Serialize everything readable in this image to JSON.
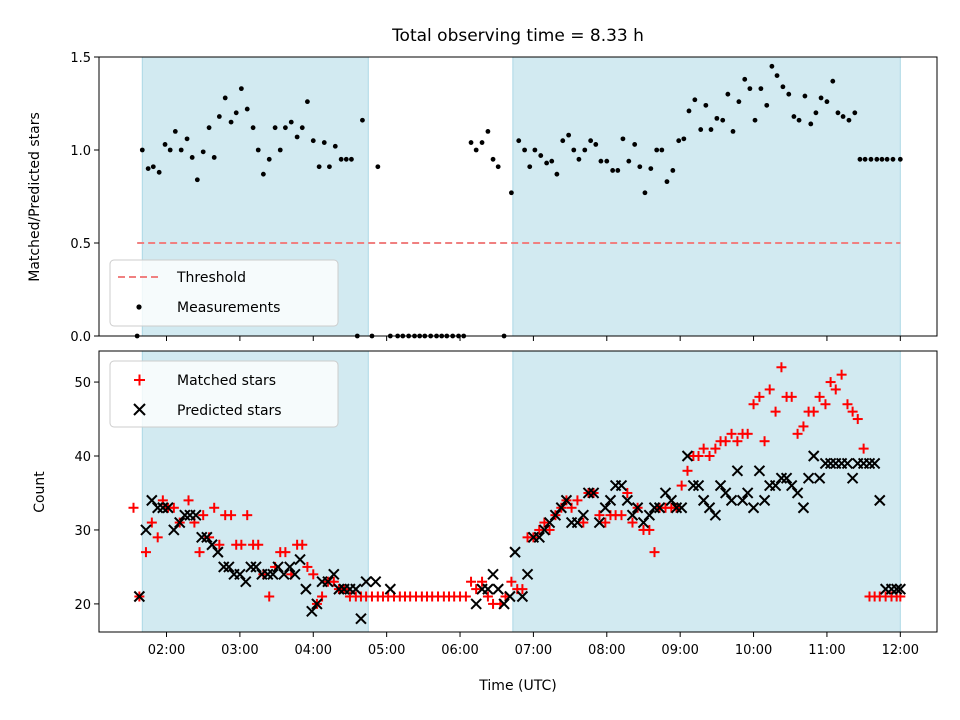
{
  "chart_data": [
    {
      "type": "scatter",
      "title": "Total observing time = 8.33 h",
      "ylabel": "Matched/Predicted stars",
      "xlabel": "",
      "ylim": [
        0,
        1.5
      ],
      "yticks": [
        0.0,
        0.5,
        1.0,
        1.5
      ],
      "ytick_labels": [
        "0.0",
        "0.5",
        "1.0",
        "1.5"
      ],
      "xlim": [
        1.08,
        12.5
      ],
      "grid": false,
      "legend": "lower-left",
      "shaded_intervals": [
        [
          1.67,
          4.75
        ],
        [
          6.72,
          12.0
        ]
      ],
      "shade_color": "#add8e6",
      "series": [
        {
          "name": "Threshold",
          "style": "dashed-line",
          "color": "#f08080",
          "x": [
            1.6,
            12.0
          ],
          "y": [
            0.5,
            0.5
          ]
        },
        {
          "name": "Measurements",
          "style": "dot",
          "color": "#000000",
          "x": [
            1.6,
            1.67,
            1.75,
            1.82,
            1.9,
            1.98,
            2.05,
            2.12,
            2.2,
            2.28,
            2.35,
            2.42,
            2.5,
            2.58,
            2.65,
            2.72,
            2.8,
            2.88,
            2.95,
            3.02,
            3.1,
            3.18,
            3.25,
            3.32,
            3.4,
            3.48,
            3.55,
            3.62,
            3.7,
            3.78,
            3.85,
            3.92,
            4.0,
            4.08,
            4.15,
            4.22,
            4.3,
            4.38,
            4.45,
            4.52,
            4.6,
            4.67,
            4.8,
            4.88,
            5.05,
            5.15,
            5.22,
            5.3,
            5.38,
            5.45,
            5.52,
            5.6,
            5.68,
            5.75,
            5.82,
            5.9,
            5.98,
            6.05,
            6.15,
            6.22,
            6.3,
            6.38,
            6.45,
            6.52,
            6.6,
            6.7,
            6.8,
            6.88,
            6.95,
            7.02,
            7.1,
            7.18,
            7.25,
            7.32,
            7.4,
            7.48,
            7.55,
            7.62,
            7.7,
            7.78,
            7.85,
            7.92,
            8.0,
            8.08,
            8.15,
            8.22,
            8.3,
            8.38,
            8.45,
            8.52,
            8.6,
            8.68,
            8.75,
            8.82,
            8.9,
            8.98,
            9.05,
            9.12,
            9.2,
            9.28,
            9.35,
            9.42,
            9.5,
            9.58,
            9.65,
            9.72,
            9.8,
            9.88,
            9.95,
            10.02,
            10.1,
            10.18,
            10.25,
            10.32,
            10.4,
            10.48,
            10.55,
            10.62,
            10.7,
            10.78,
            10.85,
            10.92,
            11.0,
            11.08,
            11.15,
            11.22,
            11.3,
            11.38,
            11.45,
            11.52,
            11.6,
            11.68,
            11.75,
            11.82,
            11.9,
            12.0
          ],
          "y": [
            0.0,
            1.0,
            0.9,
            0.91,
            0.88,
            1.03,
            1.0,
            1.1,
            1.0,
            1.06,
            0.96,
            0.84,
            0.99,
            1.12,
            0.96,
            1.18,
            1.28,
            1.15,
            1.2,
            1.33,
            1.22,
            1.12,
            1.0,
            0.87,
            0.95,
            1.12,
            1.0,
            1.12,
            1.15,
            1.07,
            1.12,
            1.26,
            1.05,
            0.91,
            1.04,
            0.91,
            1.02,
            0.95,
            0.95,
            0.95,
            0.0,
            1.16,
            0.0,
            0.91,
            0.0,
            0.0,
            0.0,
            0.0,
            0.0,
            0.0,
            0.0,
            0.0,
            0.0,
            0.0,
            0.0,
            0.0,
            0.0,
            0.0,
            1.04,
            1.0,
            1.04,
            1.1,
            0.95,
            0.91,
            0.0,
            0.77,
            1.05,
            1.0,
            0.91,
            1.0,
            0.97,
            0.93,
            0.94,
            0.87,
            1.05,
            1.08,
            1.0,
            0.95,
            1.0,
            1.05,
            1.03,
            0.94,
            0.94,
            0.89,
            0.89,
            1.06,
            0.94,
            1.03,
            0.91,
            0.77,
            0.9,
            1.0,
            1.0,
            0.83,
            0.89,
            1.05,
            1.06,
            1.21,
            1.27,
            1.11,
            1.24,
            1.11,
            1.17,
            1.16,
            1.3,
            1.1,
            1.26,
            1.38,
            1.33,
            1.16,
            1.33,
            1.24,
            1.45,
            1.4,
            1.34,
            1.3,
            1.18,
            1.16,
            1.29,
            1.14,
            1.2,
            1.28,
            1.26,
            1.37,
            1.2,
            1.18,
            1.16,
            1.2,
            0.95,
            0.95,
            0.95,
            0.95,
            0.95,
            0.95,
            0.95,
            0.95
          ]
        }
      ],
      "xticks": [
        2,
        3,
        4,
        5,
        6,
        7,
        8,
        9,
        10,
        11,
        12
      ]
    },
    {
      "type": "scatter",
      "title": "",
      "ylabel": "Count",
      "xlabel": "Time (UTC)",
      "ylim": [
        16.2,
        54.2
      ],
      "yticks": [
        20,
        30,
        40,
        50
      ],
      "ytick_labels": [
        "20",
        "30",
        "40",
        "50"
      ],
      "xlim": [
        1.08,
        12.5
      ],
      "xticks": [
        2,
        3,
        4,
        5,
        6,
        7,
        8,
        9,
        10,
        11,
        12
      ],
      "xtick_labels": [
        "02:00",
        "03:00",
        "04:00",
        "05:00",
        "06:00",
        "07:00",
        "08:00",
        "09:00",
        "10:00",
        "11:00",
        "12:00"
      ],
      "grid": false,
      "legend": "top-left",
      "shaded_intervals": [
        [
          1.67,
          4.75
        ],
        [
          6.72,
          12.0
        ]
      ],
      "shade_color": "#add8e6",
      "series": [
        {
          "name": "Matched stars",
          "marker": "plus",
          "color": "#ff0000",
          "x": [
            1.55,
            1.63,
            1.72,
            1.8,
            1.88,
            1.95,
            2.02,
            2.1,
            2.18,
            2.3,
            2.38,
            2.45,
            2.5,
            2.58,
            2.65,
            2.72,
            2.8,
            2.88,
            2.95,
            3.02,
            3.1,
            3.18,
            3.25,
            3.32,
            3.4,
            3.48,
            3.55,
            3.62,
            3.7,
            3.78,
            3.85,
            3.92,
            4.0,
            4.05,
            4.12,
            4.2,
            4.28,
            4.35,
            4.42,
            4.5,
            4.58,
            4.65,
            4.72,
            4.8,
            4.88,
            4.95,
            5.02,
            5.1,
            5.18,
            5.25,
            5.32,
            5.4,
            5.48,
            5.55,
            5.62,
            5.7,
            5.78,
            5.85,
            5.92,
            6.0,
            6.08,
            6.15,
            6.22,
            6.3,
            6.38,
            6.45,
            6.55,
            6.62,
            6.7,
            6.78,
            6.85,
            6.92,
            7.0,
            7.08,
            7.15,
            7.22,
            7.3,
            7.38,
            7.45,
            7.52,
            7.6,
            7.68,
            7.75,
            7.82,
            7.9,
            7.98,
            8.05,
            8.12,
            8.2,
            8.28,
            8.35,
            8.42,
            8.5,
            8.58,
            8.65,
            8.72,
            8.8,
            8.88,
            8.95,
            9.02,
            9.1,
            9.18,
            9.25,
            9.32,
            9.4,
            9.48,
            9.55,
            9.62,
            9.7,
            9.78,
            9.85,
            9.92,
            10.0,
            10.08,
            10.15,
            10.22,
            10.3,
            10.38,
            10.45,
            10.52,
            10.6,
            10.68,
            10.75,
            10.82,
            10.9,
            10.98,
            11.05,
            11.12,
            11.2,
            11.28,
            11.35,
            11.42,
            11.5,
            11.58,
            11.65,
            11.72,
            11.8,
            11.88,
            11.95,
            12.0
          ],
          "y": [
            33,
            21,
            27,
            31,
            29,
            34,
            33,
            33,
            31,
            34,
            31,
            27,
            32,
            29,
            33,
            28,
            32,
            32,
            28,
            28,
            32,
            28,
            28,
            24,
            21,
            25,
            27,
            27,
            24,
            28,
            28,
            25,
            24,
            20,
            21,
            23,
            23,
            22,
            22,
            21,
            21,
            21,
            21,
            21,
            21,
            21,
            21,
            21,
            21,
            21,
            21,
            21,
            21,
            21,
            21,
            21,
            21,
            21,
            21,
            21,
            21,
            23,
            22,
            23,
            21,
            20,
            20,
            21,
            23,
            22,
            22,
            29,
            29,
            30,
            31,
            30,
            32,
            33,
            34,
            33,
            34,
            31,
            35,
            35,
            32,
            31,
            32,
            32,
            32,
            35,
            31,
            33,
            30,
            30,
            27,
            33,
            33,
            33,
            33,
            36,
            38,
            40,
            40,
            41,
            40,
            41,
            42,
            42,
            43,
            42,
            43,
            43,
            47,
            48,
            42,
            49,
            46,
            52,
            48,
            48,
            43,
            44,
            46,
            46,
            48,
            47,
            50,
            49,
            51,
            47,
            46,
            45,
            41,
            21,
            21,
            21,
            21,
            21,
            21,
            21
          ]
        },
        {
          "name": "Predicted stars",
          "marker": "x",
          "color": "#000000",
          "x": [
            1.63,
            1.72,
            1.8,
            1.88,
            1.95,
            2.02,
            2.1,
            2.18,
            2.25,
            2.32,
            2.4,
            2.48,
            2.55,
            2.62,
            2.7,
            2.78,
            2.85,
            2.92,
            3.0,
            3.08,
            3.15,
            3.22,
            3.3,
            3.38,
            3.45,
            3.52,
            3.6,
            3.68,
            3.75,
            3.82,
            3.9,
            3.98,
            4.05,
            4.12,
            4.2,
            4.28,
            4.35,
            4.42,
            4.5,
            4.58,
            4.65,
            4.72,
            4.85,
            5.05,
            6.22,
            6.3,
            6.38,
            6.45,
            6.52,
            6.6,
            6.68,
            6.75,
            6.85,
            6.92,
            7.0,
            7.08,
            7.15,
            7.22,
            7.3,
            7.38,
            7.45,
            7.52,
            7.6,
            7.68,
            7.75,
            7.82,
            7.9,
            7.98,
            8.05,
            8.12,
            8.2,
            8.28,
            8.35,
            8.42,
            8.5,
            8.58,
            8.65,
            8.72,
            8.8,
            8.88,
            8.95,
            9.02,
            9.1,
            9.18,
            9.25,
            9.32,
            9.4,
            9.48,
            9.55,
            9.62,
            9.7,
            9.78,
            9.85,
            9.92,
            10.0,
            10.08,
            10.15,
            10.22,
            10.3,
            10.38,
            10.45,
            10.52,
            10.6,
            10.68,
            10.75,
            10.82,
            10.9,
            10.98,
            11.05,
            11.12,
            11.2,
            11.28,
            11.35,
            11.42,
            11.5,
            11.58,
            11.65,
            11.72,
            11.8,
            11.88,
            11.95,
            12.0
          ],
          "y": [
            21,
            30,
            34,
            33,
            33,
            33,
            30,
            31,
            32,
            32,
            32,
            29,
            29,
            28,
            27,
            25,
            25,
            24,
            24,
            23,
            25,
            25,
            24,
            24,
            24,
            25,
            24,
            25,
            24,
            26,
            22,
            19,
            20,
            23,
            23,
            24,
            22,
            22,
            22,
            22,
            18,
            23,
            23,
            22,
            20,
            22,
            22,
            24,
            22,
            20,
            21,
            27,
            21,
            24,
            29,
            29,
            30,
            31,
            32,
            33,
            34,
            31,
            31,
            32,
            35,
            35,
            31,
            33,
            34,
            36,
            36,
            34,
            32,
            33,
            31,
            32,
            33,
            33,
            35,
            34,
            33,
            33,
            40,
            36,
            36,
            34,
            33,
            32,
            36,
            35,
            34,
            38,
            34,
            35,
            33,
            38,
            34,
            36,
            36,
            37,
            37,
            36,
            35,
            33,
            37,
            40,
            37,
            39,
            39,
            39,
            39,
            39,
            37,
            39,
            39,
            39,
            39,
            34,
            22,
            22,
            22,
            22
          ]
        }
      ]
    }
  ]
}
